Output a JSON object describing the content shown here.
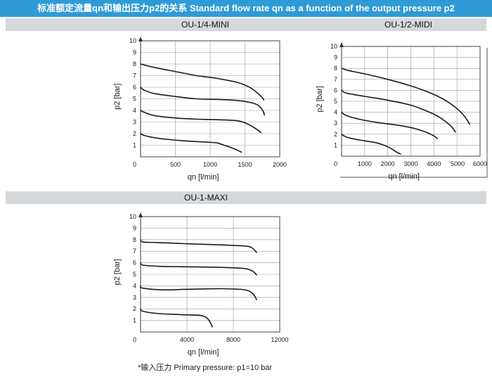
{
  "header": {
    "title": "标准额定流量qn和输出压力p2的关系 Standard flow rate qn as a function of the output pressure p2"
  },
  "sections": [
    {
      "titles": [
        "OU-1/4-MINI",
        "OU-1/2-MIDI"
      ]
    },
    {
      "titles": [
        "OU-1-MAXI"
      ]
    }
  ],
  "footnote": "*输入压力 Primary pressure:  p1=10 bar",
  "colors": {
    "banner": "#2e9bd6",
    "section_bar": "#d5d8db",
    "curve": "#1a1a1a",
    "grid": "#9a9a9a"
  },
  "chart_data": [
    {
      "type": "line",
      "title": "OU-1/4-MINI",
      "xlabel": "qn [l/min]",
      "ylabel": "p2 [bar]",
      "xlim": [
        0,
        2000
      ],
      "ylim": [
        0,
        10
      ],
      "xticks": [
        "0",
        "500",
        "1000",
        "1500",
        "2000"
      ],
      "yticks": [
        "1",
        "2",
        "3",
        "4",
        "5",
        "6",
        "7",
        "8",
        "9",
        "10"
      ],
      "grid": true,
      "series": [
        {
          "x": [
            0,
            200,
            500,
            800,
            1000,
            1200,
            1400,
            1550,
            1650,
            1750,
            1770
          ],
          "y": [
            8.0,
            7.7,
            7.35,
            7.0,
            6.85,
            6.65,
            6.4,
            6.05,
            5.65,
            5.1,
            4.9
          ]
        },
        {
          "x": [
            0,
            50,
            200,
            500,
            800,
            1100,
            1400,
            1600,
            1700,
            1760,
            1780
          ],
          "y": [
            6.0,
            5.75,
            5.45,
            5.2,
            5.0,
            4.95,
            4.85,
            4.65,
            4.4,
            3.95,
            3.6
          ]
        },
        {
          "x": [
            0,
            50,
            200,
            500,
            800,
            1100,
            1400,
            1550,
            1650,
            1730
          ],
          "y": [
            4.0,
            3.85,
            3.55,
            3.35,
            3.25,
            3.2,
            3.1,
            2.8,
            2.45,
            2.1
          ]
        },
        {
          "x": [
            0,
            50,
            200,
            400,
            700,
            1000,
            1100,
            1200,
            1300,
            1400,
            1450
          ],
          "y": [
            2.0,
            1.85,
            1.65,
            1.5,
            1.35,
            1.25,
            1.2,
            1.0,
            0.8,
            0.55,
            0.4
          ]
        }
      ]
    },
    {
      "type": "line",
      "title": "OU-1/2-MIDI",
      "xlabel": "qn [l/min]",
      "ylabel": "p2 [bar]",
      "xlim": [
        0,
        6000
      ],
      "ylim": [
        0,
        10
      ],
      "xticks": [
        "0",
        "1000",
        "2000",
        "3000",
        "4000",
        "5000",
        "6000"
      ],
      "xtick_texts": [
        "0",
        "1000",
        "2000",
        "3000",
        "4000",
        "‘5000",
        "6000"
      ],
      "yticks": [
        "1",
        "2",
        "3",
        "4",
        "5",
        "6",
        "7",
        "8",
        "9",
        "10"
      ],
      "grid": true,
      "series": [
        {
          "x": [
            0,
            300,
            1000,
            2000,
            3000,
            3800,
            4400,
            4900,
            5300,
            5550
          ],
          "y": [
            8.0,
            7.8,
            7.5,
            7.0,
            6.4,
            5.8,
            5.2,
            4.5,
            3.7,
            2.9
          ]
        },
        {
          "x": [
            0,
            200,
            1000,
            2000,
            3000,
            3700,
            4200,
            4600,
            4800,
            4930
          ],
          "y": [
            6.0,
            5.75,
            5.45,
            5.1,
            4.65,
            4.1,
            3.6,
            3.0,
            2.6,
            2.2
          ]
        },
        {
          "x": [
            0,
            200,
            800,
            1600,
            2500,
            3200,
            3700,
            4000,
            4150
          ],
          "y": [
            4.0,
            3.7,
            3.35,
            3.05,
            2.8,
            2.5,
            2.15,
            1.85,
            1.6
          ]
        },
        {
          "x": [
            0,
            200,
            700,
            1300,
            1700,
            2100,
            2400,
            2550
          ],
          "y": [
            2.0,
            1.75,
            1.5,
            1.3,
            1.1,
            0.75,
            0.35,
            0.2
          ]
        }
      ]
    },
    {
      "type": "line",
      "title": "OU-1-MAXI",
      "xlabel": "qn [l/min]",
      "ylabel": "p2 [bar]",
      "xlim": [
        0,
        12000
      ],
      "ylim": [
        0,
        10
      ],
      "xticks": [
        "0",
        "4000",
        "8000",
        "12000"
      ],
      "yticks": [
        "1",
        "2",
        "3",
        "4",
        "5",
        "6",
        "7",
        "8",
        "9",
        "10"
      ],
      "grid": true,
      "series": [
        {
          "x": [
            0,
            200,
            1500,
            4000,
            7000,
            9000,
            9600,
            10000
          ],
          "y": [
            8.0,
            7.8,
            7.75,
            7.65,
            7.55,
            7.45,
            7.3,
            6.9
          ]
        },
        {
          "x": [
            0,
            200,
            1500,
            4000,
            7000,
            9000,
            9700,
            10000
          ],
          "y": [
            6.0,
            5.8,
            5.7,
            5.65,
            5.6,
            5.5,
            5.25,
            4.95
          ]
        },
        {
          "x": [
            0,
            200,
            2000,
            4000,
            7000,
            9000,
            9700,
            10000
          ],
          "y": [
            4.0,
            3.8,
            3.65,
            3.7,
            3.75,
            3.65,
            3.3,
            2.8
          ]
        },
        {
          "x": [
            0,
            200,
            1500,
            3500,
            5500,
            6200
          ],
          "y": [
            2.0,
            1.8,
            1.6,
            1.5,
            1.35,
            0.45
          ]
        }
      ]
    }
  ]
}
